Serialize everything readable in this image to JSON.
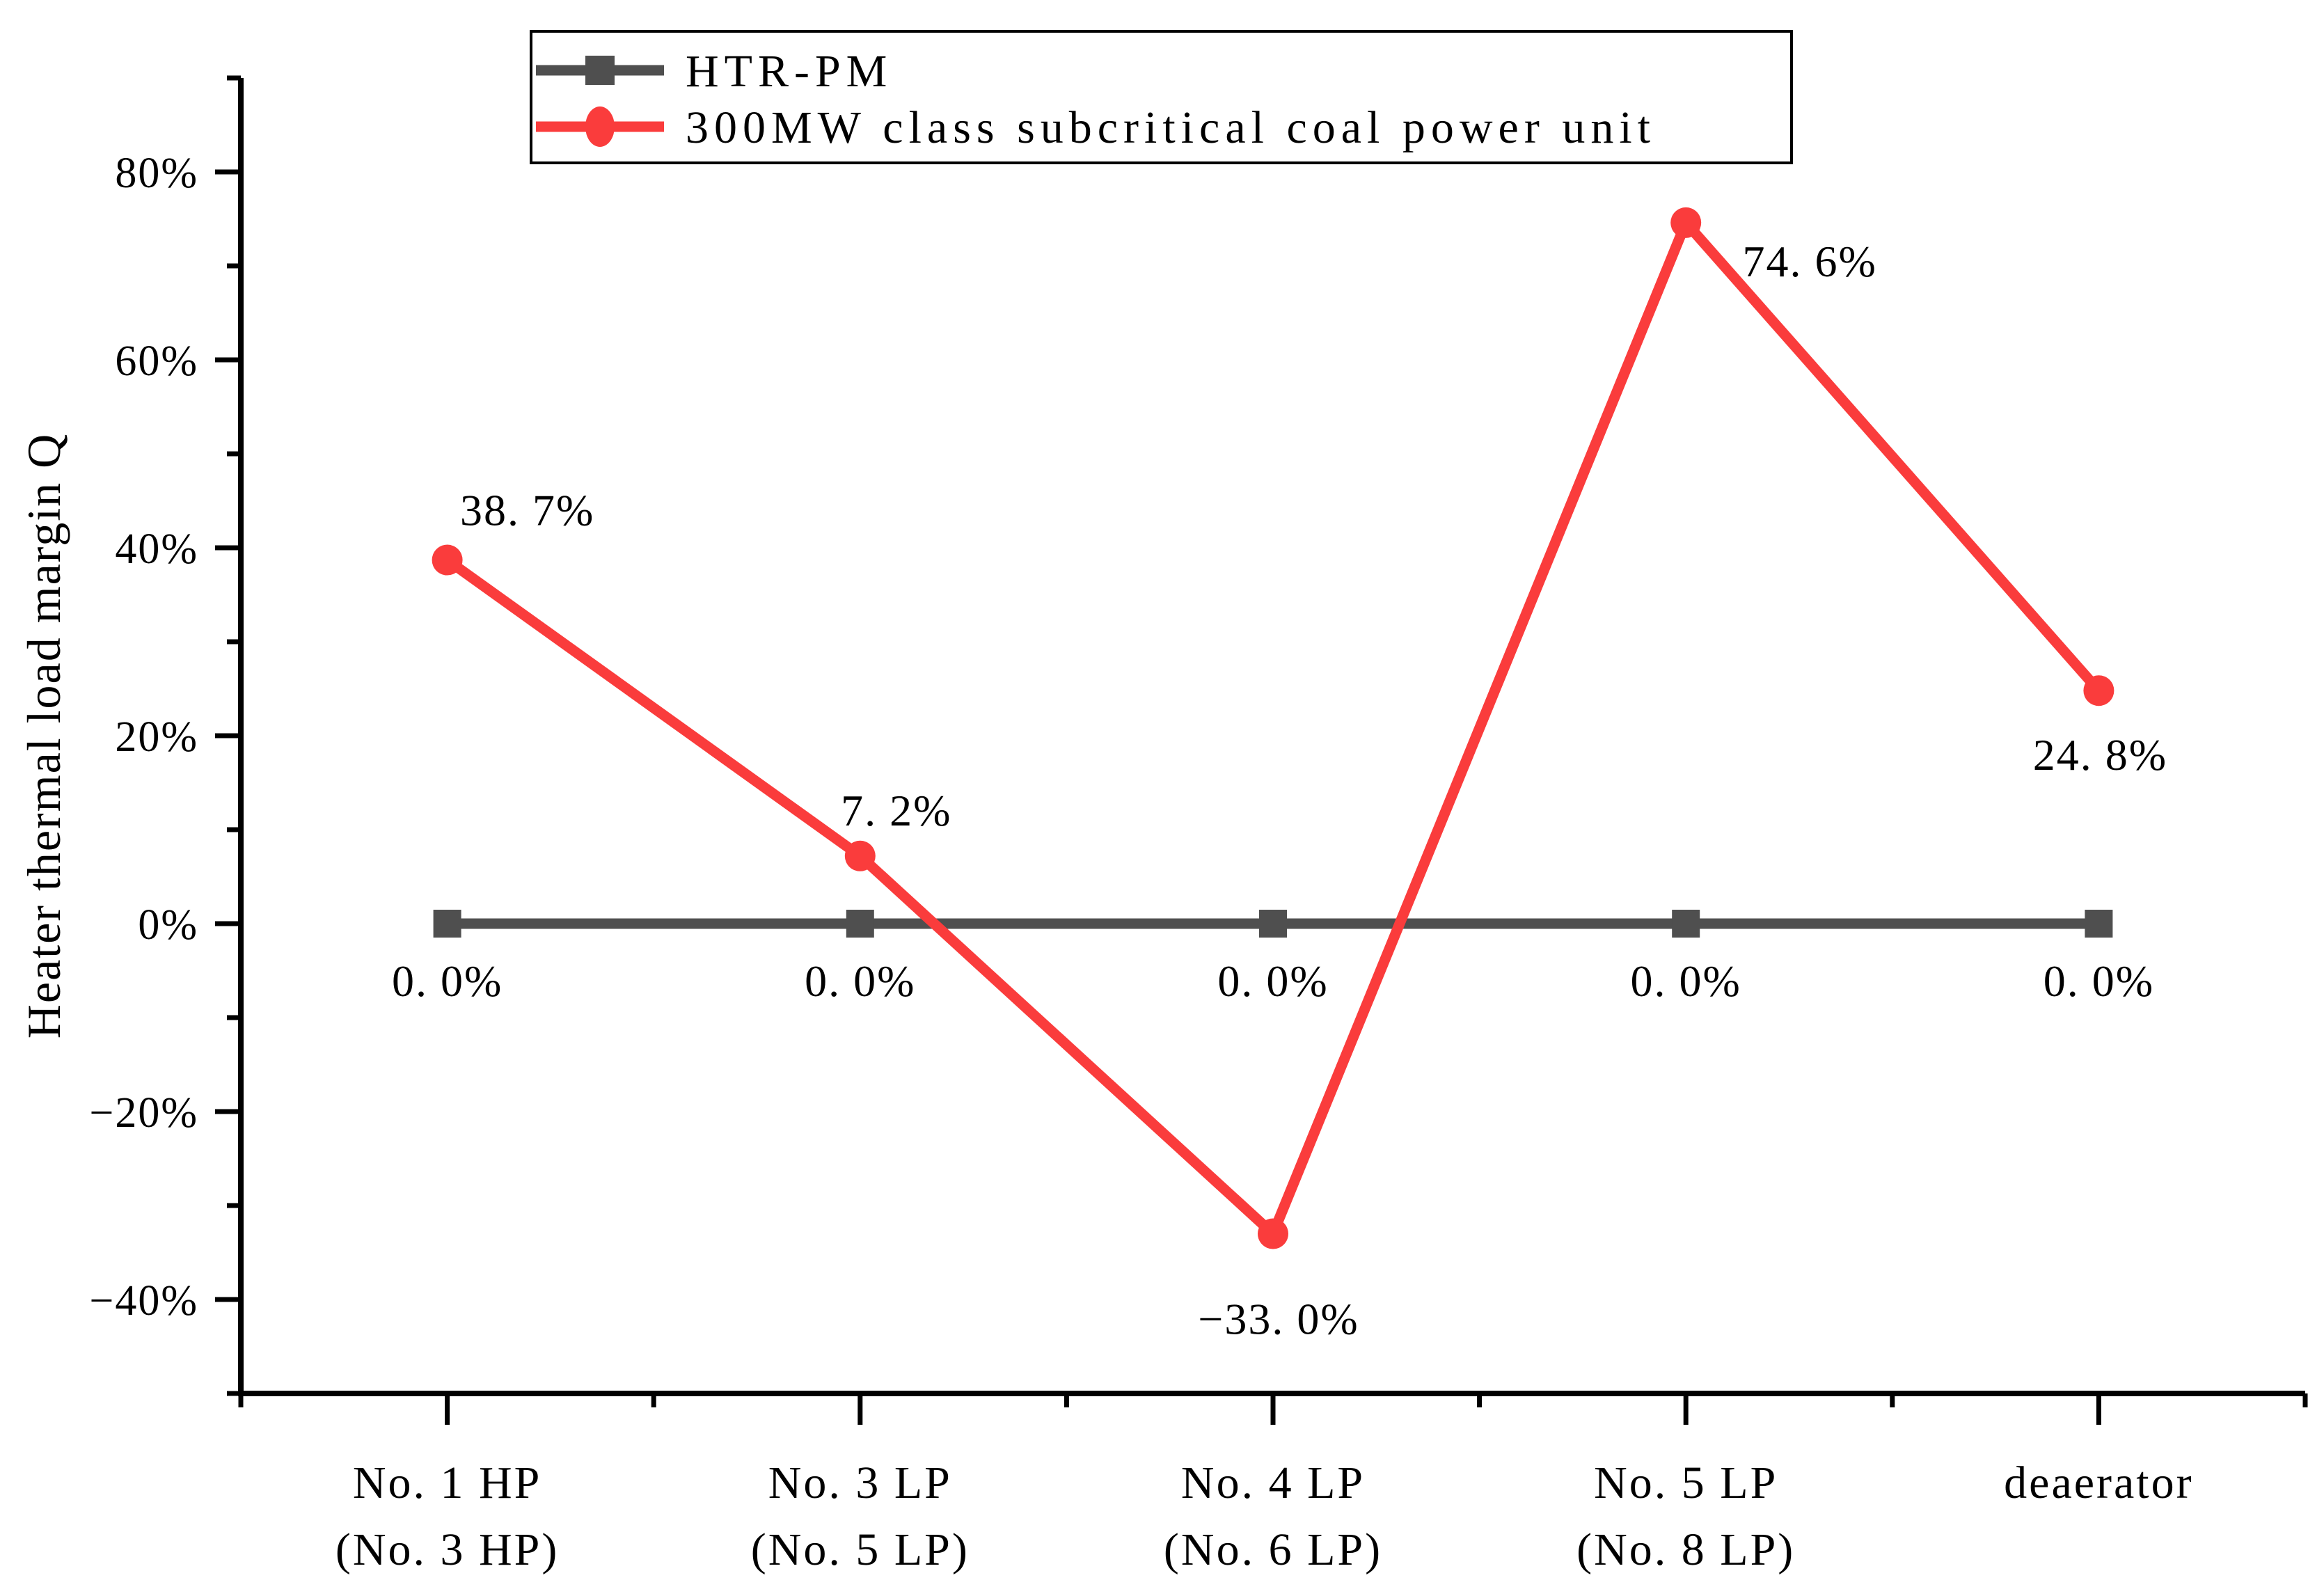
{
  "page": {
    "background": "#ffffff"
  },
  "legend": {
    "entries": [
      {
        "label": "HTR-PM",
        "color": "#4F4F4F",
        "marker": "square"
      },
      {
        "label": "300MW class subcritical coal power unit",
        "color": "#FA3C3C",
        "marker": "circle"
      }
    ]
  },
  "chart_data": {
    "type": "line",
    "title": "",
    "xlabel": "",
    "ylabel": "Heater thermal load margin Q",
    "categories": [
      {
        "line1": "No. 1 HP",
        "line2": "(No. 3 HP)"
      },
      {
        "line1": "No. 3 LP",
        "line2": "(No. 5 LP)"
      },
      {
        "line1": "No. 4 LP",
        "line2": "(No. 6 LP)"
      },
      {
        "line1": "No. 5 LP",
        "line2": "(No. 8 LP)"
      },
      {
        "line1": "deaerator",
        "line2": ""
      }
    ],
    "series": [
      {
        "name": "HTR-PM",
        "marker": "square",
        "color": "#4F4F4F",
        "values": [
          0.0,
          0.0,
          0.0,
          0.0,
          0.0
        ],
        "point_labels": [
          "0. 0%",
          "0. 0%",
          "0. 0%",
          "0. 0%",
          "0. 0%"
        ],
        "label_offsets": [
          [
            0,
            82
          ],
          [
            0,
            82
          ],
          [
            0,
            82
          ],
          [
            0,
            82
          ],
          [
            0,
            82
          ]
        ]
      },
      {
        "name": "300MW class subcritical coal power unit",
        "marker": "circle",
        "color": "#FA3C3C",
        "values": [
          38.7,
          7.2,
          -33.0,
          74.6,
          24.8
        ],
        "point_labels": [
          "38. 7%",
          "7. 2%",
          "−33. 0%",
          "74. 6%",
          "24. 8%"
        ],
        "label_offsets": [
          [
            115,
            -72
          ],
          [
            52,
            -66
          ],
          [
            8,
            122
          ],
          [
            178,
            55
          ],
          [
            2,
            92
          ]
        ]
      }
    ],
    "ylim": [
      -50,
      90
    ],
    "yticks": {
      "major_values": [
        -40,
        -20,
        0,
        20,
        40,
        60,
        80
      ],
      "major_labels": [
        "−40%",
        "−20%",
        "0%",
        "20%",
        "40%",
        "60%",
        "80%"
      ],
      "minor_step": 10
    },
    "grid": false,
    "legend_position": "top-inside"
  }
}
